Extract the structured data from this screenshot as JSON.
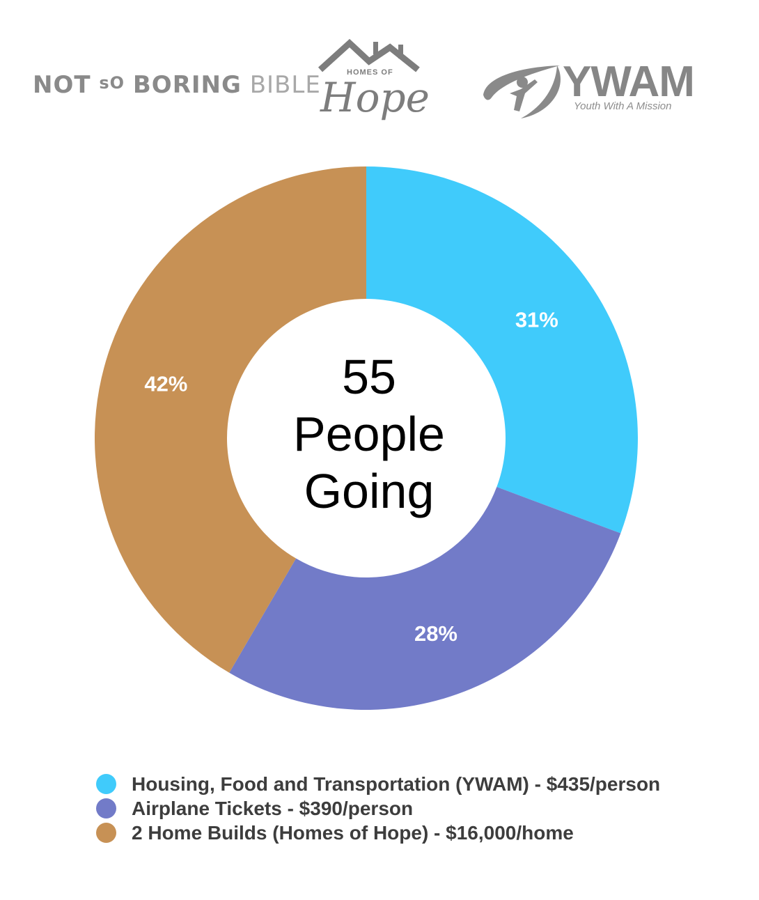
{
  "logos": {
    "nsbb": {
      "w1": "NOT",
      "w2": "sO",
      "w3": "BORING",
      "w4": "BIBLE"
    },
    "homes_of_hope": {
      "small": "HOMES OF",
      "big": "Hope"
    },
    "ywam": {
      "name": "YWAM",
      "tagline": "Youth With A Mission"
    }
  },
  "colors": {
    "housing": "#40CBFB",
    "airplane": "#727BC8",
    "homes": "#C79155",
    "label_text": "#FFFFFF",
    "legend_text": "#3D3D3D",
    "logo_gray": "#8A8A8A"
  },
  "center": {
    "line1": "55",
    "line2": "People",
    "line3": "Going"
  },
  "chart_data": {
    "type": "pie",
    "donut": true,
    "title": "",
    "categories": [
      "Housing, Food and Transportation (YWAM) - $435/person",
      "Airplane Tickets - $390/person",
      "2 Home Builds (Homes of Hope) - $16,000/home"
    ],
    "values": [
      31,
      28,
      42
    ],
    "value_labels": [
      "31%",
      "28%",
      "42%"
    ],
    "colors": [
      "#40CBFB",
      "#727BC8",
      "#C79155"
    ],
    "start": "12 o'clock, clockwise",
    "legend_position": "bottom-left"
  }
}
